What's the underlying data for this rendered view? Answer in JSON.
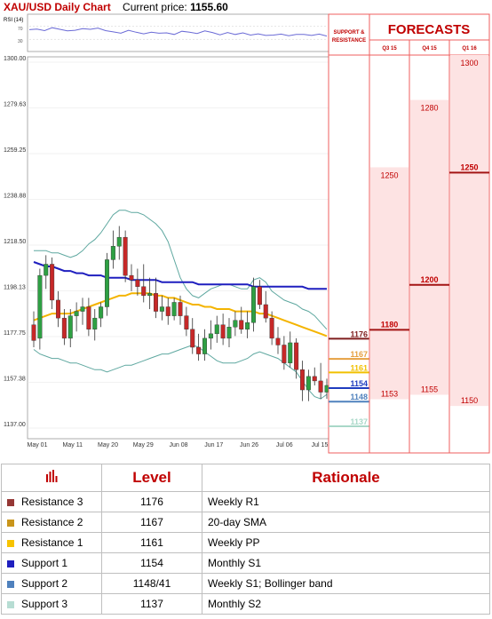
{
  "header": {
    "title": "XAU/USD Daily Chart",
    "price_label": "Current price:",
    "price_value": "1155.60"
  },
  "chart_data": {
    "type": "candlestick",
    "title": "XAU/USD Daily Chart",
    "y_ticks": [
      "1300.00",
      "1279.63",
      "1259.25",
      "1238.88",
      "1218.50",
      "1198.13",
      "1177.75",
      "1157.38",
      "1137.00"
    ],
    "ylim": [
      1137.0,
      1300.0
    ],
    "x_ticks": [
      "May 01",
      "May 11",
      "May 20",
      "May 29",
      "Jun 08",
      "Jun 17",
      "Jun 26",
      "Jul 06",
      "Jul 15"
    ],
    "rsi": {
      "label": "RSI (14)",
      "levels": [
        "70",
        "30"
      ],
      "values": [
        60,
        62,
        57,
        66,
        61,
        56,
        58,
        63,
        61,
        65,
        57,
        53,
        49,
        58,
        52,
        47,
        52,
        49,
        50,
        45,
        55,
        52,
        48,
        56,
        51,
        44,
        51,
        45,
        50,
        43,
        47,
        42,
        43,
        46,
        41,
        45,
        45,
        42,
        46,
        40
      ]
    },
    "candles": [
      [
        1183,
        1189,
        1173,
        1176
      ],
      [
        1177,
        1208,
        1172,
        1205
      ],
      [
        1205,
        1214,
        1199,
        1210
      ],
      [
        1210,
        1213,
        1190,
        1194
      ],
      [
        1194,
        1198,
        1182,
        1186
      ],
      [
        1186,
        1190,
        1174,
        1177
      ],
      [
        1177,
        1190,
        1173,
        1187
      ],
      [
        1187,
        1193,
        1180,
        1189
      ],
      [
        1189,
        1195,
        1183,
        1191
      ],
      [
        1191,
        1195,
        1178,
        1181
      ],
      [
        1181,
        1190,
        1176,
        1186
      ],
      [
        1186,
        1193,
        1182,
        1191
      ],
      [
        1191,
        1215,
        1187,
        1212
      ],
      [
        1212,
        1225,
        1208,
        1218
      ],
      [
        1218,
        1227,
        1212,
        1222
      ],
      [
        1222,
        1225,
        1202,
        1205
      ],
      [
        1205,
        1210,
        1198,
        1203
      ],
      [
        1203,
        1208,
        1196,
        1200
      ],
      [
        1200,
        1210,
        1193,
        1196
      ],
      [
        1196,
        1204,
        1190,
        1197
      ],
      [
        1197,
        1204,
        1186,
        1189
      ],
      [
        1189,
        1196,
        1185,
        1191
      ],
      [
        1191,
        1195,
        1183,
        1187
      ],
      [
        1187,
        1195,
        1185,
        1193
      ],
      [
        1193,
        1196,
        1183,
        1187
      ],
      [
        1187,
        1191,
        1178,
        1181
      ],
      [
        1181,
        1186,
        1170,
        1173
      ],
      [
        1173,
        1179,
        1167,
        1170
      ],
      [
        1170,
        1181,
        1167,
        1177
      ],
      [
        1177,
        1185,
        1172,
        1179
      ],
      [
        1179,
        1187,
        1175,
        1183
      ],
      [
        1183,
        1188,
        1174,
        1177
      ],
      [
        1177,
        1186,
        1173,
        1182
      ],
      [
        1182,
        1189,
        1178,
        1185
      ],
      [
        1185,
        1191,
        1179,
        1181
      ],
      [
        1181,
        1189,
        1177,
        1184
      ],
      [
        1184,
        1204,
        1180,
        1200
      ],
      [
        1200,
        1203,
        1190,
        1192
      ],
      [
        1192,
        1198,
        1184,
        1186
      ],
      [
        1186,
        1189,
        1174,
        1177
      ],
      [
        1177,
        1182,
        1170,
        1174
      ],
      [
        1174,
        1178,
        1163,
        1166
      ],
      [
        1166,
        1180,
        1164,
        1175
      ],
      [
        1175,
        1177,
        1159,
        1163
      ],
      [
        1163,
        1167,
        1149,
        1154
      ],
      [
        1154,
        1163,
        1149,
        1160
      ],
      [
        1160,
        1164,
        1156,
        1158
      ],
      [
        1158,
        1166,
        1150,
        1153
      ],
      [
        1153,
        1159,
        1150,
        1156
      ]
    ],
    "sma200": [
      1211,
      1210,
      1209,
      1209,
      1208,
      1207,
      1207,
      1206,
      1206,
      1205,
      1205,
      1205,
      1204,
      1204,
      1204,
      1204,
      1203,
      1203,
      1203,
      1203,
      1203,
      1202,
      1202,
      1202,
      1202,
      1202,
      1202,
      1201,
      1201,
      1201,
      1201,
      1201,
      1201,
      1201,
      1201,
      1201,
      1200,
      1200,
      1200,
      1200,
      1200,
      1200,
      1200,
      1200,
      1200,
      1199,
      1199,
      1199,
      1199
    ],
    "sma_mid": [
      1185,
      1186,
      1187,
      1188,
      1188,
      1188,
      1188,
      1189,
      1190,
      1191,
      1192,
      1193,
      1194,
      1195,
      1196,
      1196,
      1197,
      1197,
      1197,
      1197,
      1196,
      1196,
      1195,
      1195,
      1194,
      1193,
      1192,
      1192,
      1191,
      1191,
      1190,
      1190,
      1190,
      1189,
      1189,
      1189,
      1189,
      1188,
      1188,
      1187,
      1186,
      1185,
      1184,
      1183,
      1182,
      1181,
      1180,
      1179,
      1178
    ],
    "bb_upper": [
      1216,
      1216,
      1216,
      1215,
      1215,
      1214,
      1213,
      1214,
      1216,
      1219,
      1221,
      1224,
      1228,
      1232,
      1234,
      1234,
      1233,
      1233,
      1232,
      1230,
      1228,
      1225,
      1220,
      1212,
      1204,
      1199,
      1196,
      1195,
      1197,
      1199,
      1200,
      1201,
      1201,
      1200,
      1199,
      1199,
      1203,
      1204,
      1202,
      1198,
      1196,
      1194,
      1193,
      1192,
      1190,
      1189,
      1187,
      1184,
      1181
    ],
    "bb_lower": [
      1172,
      1170,
      1169,
      1168,
      1168,
      1167,
      1166,
      1166,
      1165,
      1164,
      1163,
      1163,
      1162,
      1163,
      1164,
      1165,
      1165,
      1166,
      1167,
      1168,
      1169,
      1170,
      1170,
      1171,
      1172,
      1173,
      1174,
      1173,
      1171,
      1169,
      1167,
      1166,
      1166,
      1166,
      1167,
      1168,
      1170,
      1171,
      1170,
      1169,
      1168,
      1166,
      1164,
      1162,
      1158,
      1154,
      1151,
      1150,
      1152
    ]
  },
  "sr_panel": {
    "header": "SUPPORT & RESISTANCE",
    "levels": [
      {
        "value": "1176",
        "color": "#7f1d1d"
      },
      {
        "value": "1167",
        "color": "#e6a040"
      },
      {
        "value": "1161",
        "color": "#f1c000"
      },
      {
        "value": "1154",
        "color": "#1f3cbf"
      },
      {
        "value": "1148",
        "color": "#4f81bd"
      },
      {
        "value": "1137",
        "color": "#a9d8c8"
      }
    ]
  },
  "forecasts": {
    "title": "FORECASTS",
    "columns": [
      {
        "label": "Q3 15",
        "high": "1250",
        "mid": "1180",
        "low": "1153"
      },
      {
        "label": "Q4 15",
        "high": "1280",
        "mid": "1200",
        "low": "1155"
      },
      {
        "label": "Q1 16",
        "high": "1300",
        "mid": "1250",
        "low": "1150"
      }
    ]
  },
  "table": {
    "col_level": "Level",
    "col_rationale": "Rationale",
    "rows": [
      {
        "name": "Resistance 3",
        "level": "1176",
        "rationale": "Weekly R1",
        "color": "#953735"
      },
      {
        "name": "Resistance 2",
        "level": "1167",
        "rationale": "20-day SMA",
        "color": "#c9951a"
      },
      {
        "name": "Resistance 1",
        "level": "1161",
        "rationale": "Weekly PP",
        "color": "#f7c300"
      },
      {
        "name": "Support 1",
        "level": "1154",
        "rationale": "Monthly S1",
        "color": "#1f1fbf"
      },
      {
        "name": "Support 2",
        "level": "1148/41",
        "rationale": "Weekly S1; Bollinger band",
        "color": "#4f81bd"
      },
      {
        "name": "Support 3",
        "level": "1137",
        "rationale": "Monthly S2",
        "color": "#b7ddd3"
      }
    ]
  }
}
